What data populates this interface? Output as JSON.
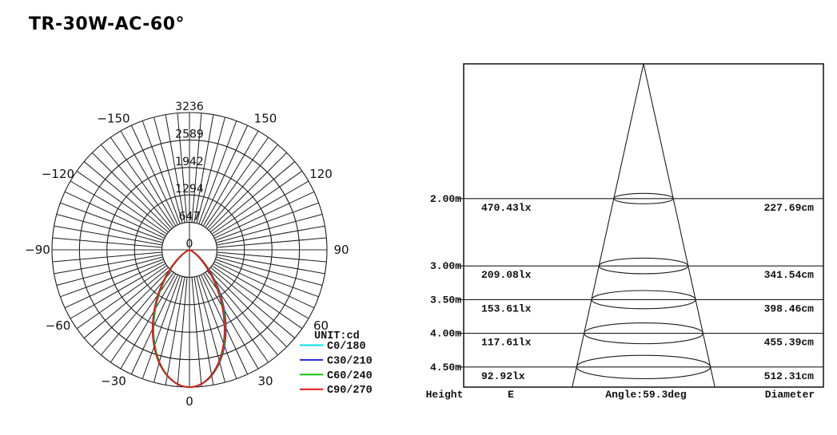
{
  "title": "TR-30W-AC-60°",
  "chart_data": [
    {
      "type": "line",
      "subtype": "polar-photometric-intensity",
      "unit_label": "UNIT:cd",
      "rmax": 3236,
      "peak_cd": 3236,
      "radial_ticks": [
        "0",
        "647",
        "1294",
        "1942",
        "2589",
        "3236"
      ],
      "radial_tick_values": [
        0,
        647,
        1294,
        1942,
        2589,
        3236
      ],
      "angle_step_deg": 5,
      "angle_labels": [
        {
          "a": -150,
          "label": "−150"
        },
        {
          "a": -120,
          "label": "−120"
        },
        {
          "a": -90,
          "label": "−90"
        },
        {
          "a": -60,
          "label": "−60"
        },
        {
          "a": -30,
          "label": "−30"
        },
        {
          "a": 0,
          "label": "0"
        },
        {
          "a": 30,
          "label": "30"
        },
        {
          "a": 60,
          "label": "60"
        },
        {
          "a": 90,
          "label": "90"
        },
        {
          "a": 120,
          "label": "120"
        },
        {
          "a": 150,
          "label": "150"
        }
      ],
      "series": [
        {
          "name": "C0/180",
          "color": "#00dede",
          "k_left": 4.9,
          "k_right": 4.8
        },
        {
          "name": "C30/210",
          "color": "#2626d8",
          "k_left": 4.88,
          "k_right": 4.74
        },
        {
          "name": "C60/240",
          "color": "#12c212",
          "k_left": 4.82,
          "k_right": 4.95
        },
        {
          "name": "C90/270",
          "color": "#e41212",
          "k_left": 4.6,
          "k_right": 5.18
        }
      ],
      "legend_position": "bottom-right"
    },
    {
      "type": "table",
      "subtype": "beam-cone-diagram",
      "beam_angle_deg": 59.3,
      "footer": {
        "height": "Height",
        "e": "E",
        "angle": "Angle:59.3deg",
        "diameter": "Diameter"
      },
      "rows": [
        {
          "height_m": 2.0,
          "height": "2.00m",
          "E": "470.43lx",
          "diameter": "227.69cm"
        },
        {
          "height_m": 3.0,
          "height": "3.00m",
          "E": "209.08lx",
          "diameter": "341.54cm"
        },
        {
          "height_m": 3.5,
          "height": "3.50m",
          "E": "153.61lx",
          "diameter": "398.46cm"
        },
        {
          "height_m": 4.0,
          "height": "4.00m",
          "E": "117.61lx",
          "diameter": "455.39cm"
        },
        {
          "height_m": 4.5,
          "height": "4.50m",
          "E": "92.92lx",
          "diameter": "512.31cm"
        }
      ]
    }
  ]
}
